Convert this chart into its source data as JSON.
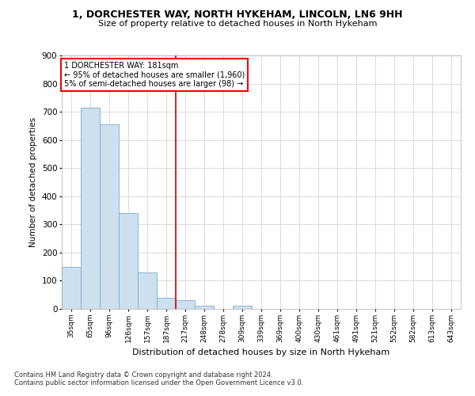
{
  "title1": "1, DORCHESTER WAY, NORTH HYKEHAM, LINCOLN, LN6 9HH",
  "title2": "Size of property relative to detached houses in North Hykeham",
  "xlabel": "Distribution of detached houses by size in North Hykeham",
  "ylabel": "Number of detached properties",
  "categories": [
    "35sqm",
    "65sqm",
    "96sqm",
    "126sqm",
    "157sqm",
    "187sqm",
    "217sqm",
    "248sqm",
    "278sqm",
    "309sqm",
    "339sqm",
    "369sqm",
    "400sqm",
    "430sqm",
    "461sqm",
    "491sqm",
    "521sqm",
    "552sqm",
    "582sqm",
    "613sqm",
    "643sqm"
  ],
  "values": [
    150,
    715,
    655,
    340,
    130,
    40,
    30,
    10,
    0,
    10,
    0,
    0,
    0,
    0,
    0,
    0,
    0,
    0,
    0,
    0,
    0
  ],
  "bar_color": "#cce0f0",
  "bar_edge_color": "#7aaac8",
  "ylim": [
    0,
    900
  ],
  "yticks": [
    0,
    100,
    200,
    300,
    400,
    500,
    600,
    700,
    800,
    900
  ],
  "vline_x": 5.5,
  "vline_color": "#cc0000",
  "annotation_line1": "1 DORCHESTER WAY: 181sqm",
  "annotation_line2": "← 95% of detached houses are smaller (1,960)",
  "annotation_line3": "5% of semi-detached houses are larger (98) →",
  "footer1": "Contains HM Land Registry data © Crown copyright and database right 2024.",
  "footer2": "Contains public sector information licensed under the Open Government Licence v3.0.",
  "background_color": "#ffffff",
  "grid_color": "#cccccc"
}
